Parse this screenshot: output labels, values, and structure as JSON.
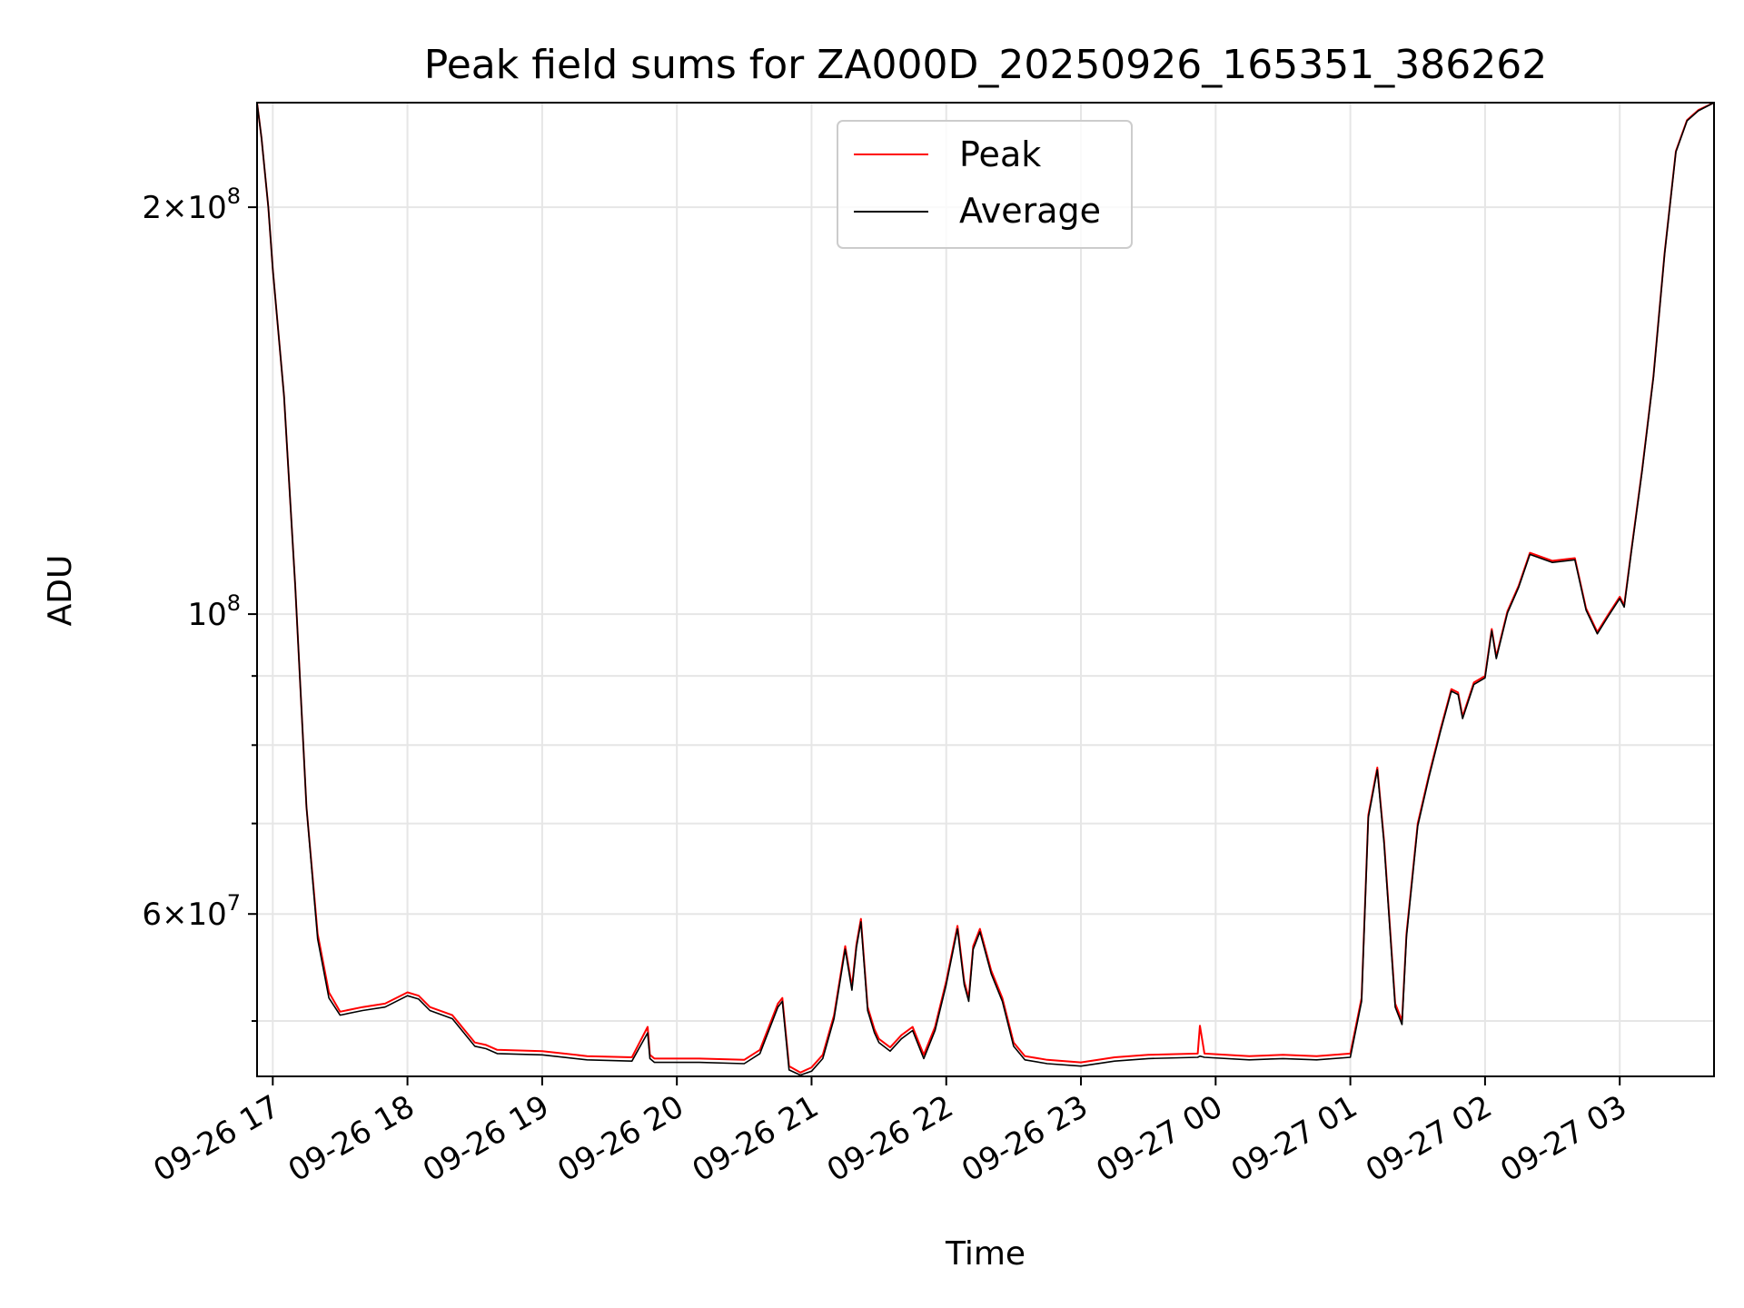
{
  "chart_data": {
    "type": "line",
    "title": "Peak field sums for ZA000D_20250926_165351_386262",
    "xlabel": "Time",
    "ylabel": "ADU",
    "yscale": "log",
    "ylim": [
      45500000,
      239000000
    ],
    "xlim": [
      "2025-09-26 16:53",
      "2025-09-27 03:42"
    ],
    "grid": true,
    "legend": {
      "position": "top-center"
    },
    "x_ticks": [
      {
        "x": "2025-09-26 17:00",
        "label": "09-26 17"
      },
      {
        "x": "2025-09-26 18:00",
        "label": "09-26 18"
      },
      {
        "x": "2025-09-26 19:00",
        "label": "09-26 19"
      },
      {
        "x": "2025-09-26 20:00",
        "label": "09-26 20"
      },
      {
        "x": "2025-09-26 21:00",
        "label": "09-26 21"
      },
      {
        "x": "2025-09-26 22:00",
        "label": "09-26 22"
      },
      {
        "x": "2025-09-26 23:00",
        "label": "09-26 23"
      },
      {
        "x": "2025-09-27 00:00",
        "label": "09-27 00"
      },
      {
        "x": "2025-09-27 01:00",
        "label": "09-27 01"
      },
      {
        "x": "2025-09-27 02:00",
        "label": "09-27 02"
      },
      {
        "x": "2025-09-27 03:00",
        "label": "09-27 03"
      }
    ],
    "y_major_ticks": [
      {
        "value": 60000000,
        "mantissa": "6",
        "exp": "7"
      },
      {
        "value": 100000000,
        "mantissa": "",
        "exp": "8"
      },
      {
        "value": 200000000,
        "mantissa": "2",
        "exp": "8"
      }
    ],
    "y_minor_ticks": [
      50000000,
      70000000,
      80000000,
      90000000
    ],
    "series": [
      {
        "name": "Peak",
        "color": "#ff0000",
        "x": [
          "2025-09-26 16:53",
          "2025-09-26 16:55",
          "2025-09-26 16:58",
          "2025-09-26 17:00",
          "2025-09-26 17:05",
          "2025-09-26 17:10",
          "2025-09-26 17:15",
          "2025-09-26 17:20",
          "2025-09-26 17:25",
          "2025-09-26 17:30",
          "2025-09-26 17:40",
          "2025-09-26 17:50",
          "2025-09-26 18:00",
          "2025-09-26 18:05",
          "2025-09-26 18:10",
          "2025-09-26 18:20",
          "2025-09-26 18:30",
          "2025-09-26 18:35",
          "2025-09-26 18:40",
          "2025-09-26 19:00",
          "2025-09-26 19:20",
          "2025-09-26 19:40",
          "2025-09-26 19:47",
          "2025-09-26 19:48",
          "2025-09-26 19:50",
          "2025-09-26 20:10",
          "2025-09-26 20:30",
          "2025-09-26 20:37",
          "2025-09-26 20:45",
          "2025-09-26 20:47",
          "2025-09-26 20:50",
          "2025-09-26 20:55",
          "2025-09-26 21:00",
          "2025-09-26 21:05",
          "2025-09-26 21:10",
          "2025-09-26 21:15",
          "2025-09-26 21:18",
          "2025-09-26 21:20",
          "2025-09-26 21:22",
          "2025-09-26 21:25",
          "2025-09-26 21:28",
          "2025-09-26 21:30",
          "2025-09-26 21:35",
          "2025-09-26 21:40",
          "2025-09-26 21:45",
          "2025-09-26 21:50",
          "2025-09-26 21:55",
          "2025-09-26 22:00",
          "2025-09-26 22:05",
          "2025-09-26 22:08",
          "2025-09-26 22:10",
          "2025-09-26 22:12",
          "2025-09-26 22:15",
          "2025-09-26 22:20",
          "2025-09-26 22:25",
          "2025-09-26 22:30",
          "2025-09-26 22:35",
          "2025-09-26 22:45",
          "2025-09-26 23:00",
          "2025-09-26 23:15",
          "2025-09-26 23:30",
          "2025-09-26 23:52",
          "2025-09-26 23:53",
          "2025-09-26 23:55",
          "2025-09-27 00:15",
          "2025-09-27 00:30",
          "2025-09-27 00:45",
          "2025-09-27 01:00",
          "2025-09-27 01:05",
          "2025-09-27 01:08",
          "2025-09-27 01:12",
          "2025-09-27 01:15",
          "2025-09-27 01:20",
          "2025-09-27 01:23",
          "2025-09-27 01:25",
          "2025-09-27 01:30",
          "2025-09-27 01:35",
          "2025-09-27 01:40",
          "2025-09-27 01:45",
          "2025-09-27 01:48",
          "2025-09-27 01:50",
          "2025-09-27 01:55",
          "2025-09-27 02:00",
          "2025-09-27 02:03",
          "2025-09-27 02:05",
          "2025-09-27 02:10",
          "2025-09-27 02:15",
          "2025-09-27 02:20",
          "2025-09-27 02:30",
          "2025-09-27 02:40",
          "2025-09-27 02:45",
          "2025-09-27 02:50",
          "2025-09-27 02:55",
          "2025-09-27 03:00",
          "2025-09-27 03:02",
          "2025-09-27 03:05",
          "2025-09-27 03:10",
          "2025-09-27 03:15",
          "2025-09-27 03:20",
          "2025-09-27 03:25",
          "2025-09-27 03:30",
          "2025-09-27 03:35",
          "2025-09-27 03:42"
        ],
        "values": [
          239000000,
          225000000,
          200000000,
          180000000,
          145000000,
          105000000,
          72000000,
          58000000,
          52500000,
          50800000,
          51200000,
          51500000,
          52500000,
          52200000,
          51200000,
          50500000,
          48200000,
          48000000,
          47600000,
          47500000,
          47100000,
          47000000,
          49500000,
          47200000,
          46900000,
          46900000,
          46800000,
          47600000,
          51500000,
          52000000,
          46300000,
          45800000,
          46200000,
          47200000,
          50500000,
          56800000,
          53000000,
          57000000,
          59500000,
          51200000,
          49300000,
          48500000,
          47800000,
          48800000,
          49500000,
          47200000,
          49500000,
          53500000,
          58800000,
          53500000,
          52000000,
          56800000,
          58500000,
          54500000,
          52000000,
          48200000,
          47100000,
          46800000,
          46600000,
          47000000,
          47200000,
          47300000,
          49600000,
          47300000,
          47100000,
          47200000,
          47100000,
          47300000,
          52000000,
          71000000,
          77000000,
          68000000,
          51500000,
          50000000,
          58000000,
          70000000,
          76000000,
          82000000,
          88000000,
          87500000,
          84000000,
          89000000,
          90000000,
          97500000,
          93000000,
          100500000,
          105000000,
          111000000,
          109500000,
          110000000,
          101000000,
          97000000,
          100000000,
          103000000,
          101500000,
          111000000,
          128000000,
          150000000,
          185000000,
          220000000,
          232000000,
          236000000,
          239000000
        ]
      },
      {
        "name": "Average",
        "color": "#000000",
        "x": [
          "2025-09-26 16:53",
          "2025-09-26 16:55",
          "2025-09-26 16:58",
          "2025-09-26 17:00",
          "2025-09-26 17:05",
          "2025-09-26 17:10",
          "2025-09-26 17:15",
          "2025-09-26 17:20",
          "2025-09-26 17:25",
          "2025-09-26 17:30",
          "2025-09-26 17:40",
          "2025-09-26 17:50",
          "2025-09-26 18:00",
          "2025-09-26 18:05",
          "2025-09-26 18:10",
          "2025-09-26 18:20",
          "2025-09-26 18:30",
          "2025-09-26 18:35",
          "2025-09-26 18:40",
          "2025-09-26 19:00",
          "2025-09-26 19:20",
          "2025-09-26 19:40",
          "2025-09-26 19:47",
          "2025-09-26 19:48",
          "2025-09-26 19:50",
          "2025-09-26 20:10",
          "2025-09-26 20:30",
          "2025-09-26 20:37",
          "2025-09-26 20:45",
          "2025-09-26 20:47",
          "2025-09-26 20:50",
          "2025-09-26 20:55",
          "2025-09-26 21:00",
          "2025-09-26 21:05",
          "2025-09-26 21:10",
          "2025-09-26 21:15",
          "2025-09-26 21:18",
          "2025-09-26 21:20",
          "2025-09-26 21:22",
          "2025-09-26 21:25",
          "2025-09-26 21:28",
          "2025-09-26 21:30",
          "2025-09-26 21:35",
          "2025-09-26 21:40",
          "2025-09-26 21:45",
          "2025-09-26 21:50",
          "2025-09-26 21:55",
          "2025-09-26 22:00",
          "2025-09-26 22:05",
          "2025-09-26 22:08",
          "2025-09-26 22:10",
          "2025-09-26 22:12",
          "2025-09-26 22:15",
          "2025-09-26 22:20",
          "2025-09-26 22:25",
          "2025-09-26 22:30",
          "2025-09-26 22:35",
          "2025-09-26 22:45",
          "2025-09-26 23:00",
          "2025-09-26 23:15",
          "2025-09-26 23:30",
          "2025-09-26 23:52",
          "2025-09-26 23:53",
          "2025-09-26 23:55",
          "2025-09-27 00:15",
          "2025-09-27 00:30",
          "2025-09-27 00:45",
          "2025-09-27 01:00",
          "2025-09-27 01:05",
          "2025-09-27 01:08",
          "2025-09-27 01:12",
          "2025-09-27 01:15",
          "2025-09-27 01:20",
          "2025-09-27 01:23",
          "2025-09-27 01:25",
          "2025-09-27 01:30",
          "2025-09-27 01:35",
          "2025-09-27 01:40",
          "2025-09-27 01:45",
          "2025-09-27 01:48",
          "2025-09-27 01:50",
          "2025-09-27 01:55",
          "2025-09-27 02:00",
          "2025-09-27 02:03",
          "2025-09-27 02:05",
          "2025-09-27 02:10",
          "2025-09-27 02:15",
          "2025-09-27 02:20",
          "2025-09-27 02:30",
          "2025-09-27 02:40",
          "2025-09-27 02:45",
          "2025-09-27 02:50",
          "2025-09-27 02:55",
          "2025-09-27 03:00",
          "2025-09-27 03:02",
          "2025-09-27 03:05",
          "2025-09-27 03:10",
          "2025-09-27 03:15",
          "2025-09-27 03:20",
          "2025-09-27 03:25",
          "2025-09-27 03:30",
          "2025-09-27 03:35",
          "2025-09-27 03:42"
        ],
        "values": [
          239000000,
          225000000,
          200000000,
          180000000,
          145000000,
          105000000,
          72000000,
          57500000,
          52000000,
          50500000,
          50900000,
          51200000,
          52200000,
          51900000,
          50900000,
          50200000,
          47900000,
          47700000,
          47300000,
          47200000,
          46800000,
          46700000,
          49000000,
          46900000,
          46600000,
          46600000,
          46500000,
          47300000,
          51200000,
          51700000,
          46000000,
          45600000,
          45900000,
          46900000,
          50200000,
          56500000,
          52700000,
          56700000,
          59200000,
          50900000,
          49000000,
          48200000,
          47500000,
          48500000,
          49200000,
          46900000,
          49200000,
          53200000,
          58500000,
          53200000,
          51700000,
          56500000,
          58200000,
          54200000,
          51700000,
          47900000,
          46800000,
          46500000,
          46300000,
          46700000,
          46900000,
          47000000,
          47100000,
          47000000,
          46800000,
          46900000,
          46800000,
          47000000,
          51700000,
          70700000,
          76700000,
          67700000,
          51200000,
          49700000,
          57700000,
          69700000,
          75700000,
          81700000,
          87700000,
          87200000,
          83700000,
          88700000,
          89700000,
          97200000,
          92700000,
          100200000,
          104700000,
          110700000,
          109200000,
          109700000,
          100700000,
          96700000,
          99700000,
          102700000,
          101200000,
          110700000,
          127700000,
          149700000,
          184700000,
          219700000,
          231700000,
          235700000,
          239000000
        ]
      }
    ]
  }
}
